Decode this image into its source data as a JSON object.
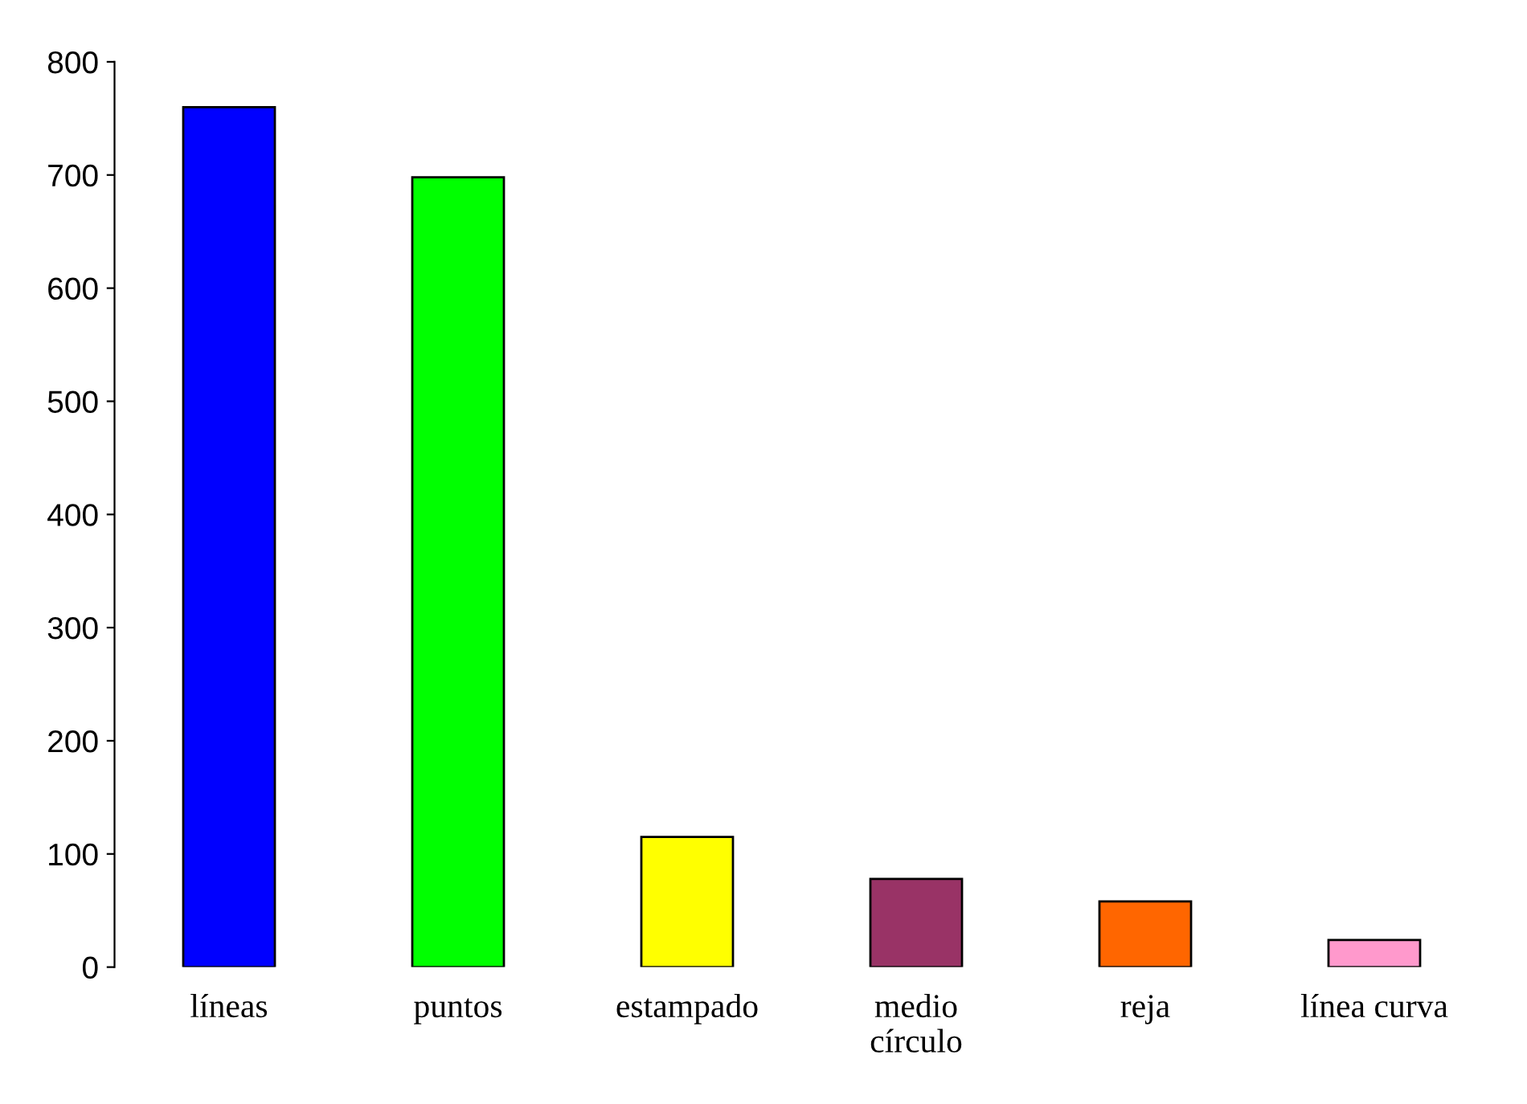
{
  "chart_data": {
    "type": "bar",
    "categories": [
      "líneas",
      "puntos",
      "estampado",
      "medio\ncírculo",
      "reja",
      "línea curva"
    ],
    "values": [
      760,
      698,
      115,
      78,
      58,
      24
    ],
    "colors": [
      "#0000ff",
      "#00ff00",
      "#ffff00",
      "#993366",
      "#ff6600",
      "#ff99cc"
    ],
    "ylim": [
      0,
      800
    ],
    "yticks": [
      0,
      100,
      200,
      300,
      400,
      500,
      600,
      700,
      800
    ],
    "grid": false
  }
}
